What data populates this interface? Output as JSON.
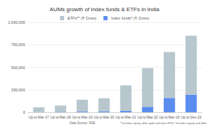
{
  "chart_data": {
    "type": "bar",
    "title": "AUMs growth of Index funds & ETFs in India",
    "categories": [
      "Up to Mar-17",
      "Up to Mar-18",
      "Up to Mar-19",
      "Up to Mar-20",
      "Up to Mar-21",
      "Up to Mar-22",
      "Up to Mar-23",
      "Up to Dec-23"
    ],
    "series": [
      {
        "name": "Index funds* (₹ Crore)",
        "color": "#5b8def",
        "values": [
          3000,
          5000,
          7000,
          8000,
          15000,
          60000,
          160000,
          195000
        ]
      },
      {
        "name": "ETFs** (₹ Crore)",
        "color": "#b7c7cd",
        "values": [
          52000,
          70000,
          133000,
          147000,
          285000,
          430000,
          510000,
          655000
        ]
      }
    ],
    "stacked": true,
    "ylim": [
      0,
      1000000
    ],
    "yticks": [
      0,
      {
        "value": 250000,
        "label": "250,000"
      },
      {
        "value": 500000,
        "label": "500,000"
      },
      {
        "value": 750000,
        "label": "750,000"
      },
      {
        "value": 1000000,
        "label": "1,000,000"
      }
    ],
    "grid": true,
    "legend": "top",
    "annotations": [
      "Data Source: NSE",
      "**Includes equity, debt, gold and silver ETFs *Includes equity and debt"
    ]
  }
}
